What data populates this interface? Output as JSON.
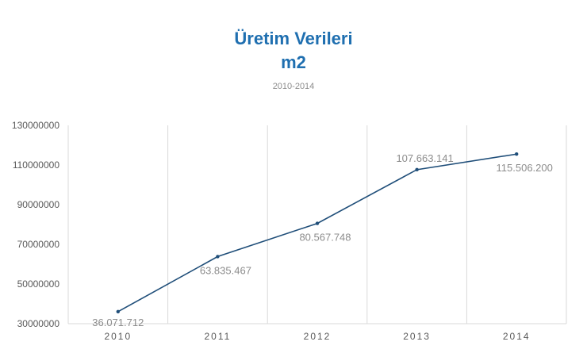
{
  "chart_data": {
    "type": "line",
    "title": "Üretim Verileri",
    "title_line2": "m2",
    "subtitle": "2010-2014",
    "xlabel": "",
    "ylabel": "",
    "categories": [
      "2010",
      "2011",
      "2012",
      "2013",
      "2014"
    ],
    "series": [
      {
        "values": [
          36071712,
          63835467,
          80567748,
          107663141,
          115506200
        ],
        "labels": [
          "36.071.712",
          "63.835.467",
          "80.567.748",
          "107.663.141",
          "115.506.200"
        ]
      }
    ],
    "ylim": [
      30000000,
      130000000
    ],
    "yticks": [
      "30000000",
      "50000000",
      "70000000",
      "90000000",
      "110000000",
      "130000000"
    ],
    "grid": "vertical",
    "line_color": "#1f4e79"
  }
}
